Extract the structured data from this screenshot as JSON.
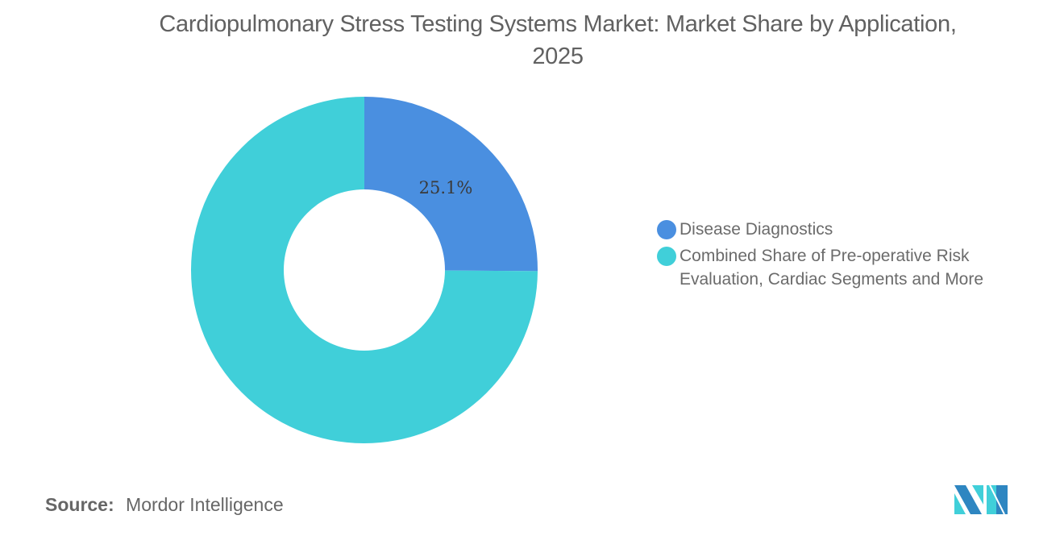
{
  "header": {
    "title_line1": "Cardiopulmonary Stress Testing Systems Market: Market Share by Application,",
    "title_line2": "2025"
  },
  "chart_data": {
    "type": "pie",
    "variant": "donut",
    "title": "Cardiopulmonary Stress Testing Systems Market: Market Share by Application, 2025",
    "categories": [
      "Disease Diagnostics",
      "Combined Share of Pre-operative Risk Evaluation, Cardiac Segments and More"
    ],
    "values": [
      25.1,
      74.9
    ],
    "unit": "%",
    "colors": [
      "#4a8fe0",
      "#40cfd9"
    ],
    "data_labels": [
      {
        "category": "Disease Diagnostics",
        "text": "25.1%"
      }
    ],
    "start_angle": "12 o'clock, clockwise",
    "legend_position": "right"
  },
  "legend": {
    "items": [
      {
        "label": "Disease Diagnostics",
        "color": "#4a8fe0"
      },
      {
        "label_line1": "Combined Share of Pre-operative Risk",
        "label_line2": "Evaluation, Cardiac Segments and More",
        "color": "#40cfd9"
      }
    ]
  },
  "slice_label": "25.1%",
  "footer": {
    "source_key": "Source:",
    "source_value": "Mordor Intelligence",
    "logo": "mordor-intelligence-logo"
  }
}
